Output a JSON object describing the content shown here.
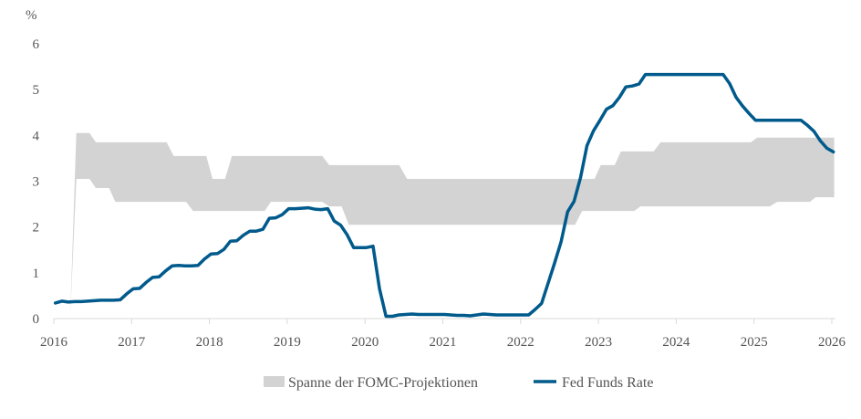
{
  "chart_data": {
    "type": "line",
    "title": "",
    "ylabel": "%",
    "xlabel": "",
    "ylim": [
      0,
      6
    ],
    "xlim": [
      2016,
      2026
    ],
    "grid": false,
    "legend_position": "bottom",
    "y_ticks": [
      "0",
      "1",
      "2",
      "3",
      "4",
      "5",
      "6"
    ],
    "x_ticks": [
      "2016",
      "2017",
      "2018",
      "2019",
      "2020",
      "2021",
      "2022",
      "2023",
      "2024",
      "2025",
      "2026"
    ],
    "colors": {
      "fed_funds": "#005a8c",
      "projection_range": "#d3d3d3",
      "axis": "#d9d9d9",
      "text": "#555555"
    },
    "legend": [
      {
        "label": "Spanne der FOMC-Projektionen",
        "kind": "area"
      },
      {
        "label": "Fed Funds Rate",
        "kind": "line"
      }
    ],
    "series": [
      {
        "name": "Fed Funds Rate",
        "start": "2016-01",
        "frequency": "monthly",
        "values": [
          0.34,
          0.38,
          0.36,
          0.37,
          0.37,
          0.38,
          0.39,
          0.4,
          0.4,
          0.4,
          0.41,
          0.54,
          0.65,
          0.66,
          0.79,
          0.9,
          0.91,
          1.04,
          1.15,
          1.16,
          1.15,
          1.15,
          1.16,
          1.3,
          1.41,
          1.42,
          1.51,
          1.69,
          1.7,
          1.82,
          1.91,
          1.91,
          1.95,
          2.19,
          2.2,
          2.27,
          2.4,
          2.4,
          2.41,
          2.42,
          2.39,
          2.38,
          2.4,
          2.13,
          2.04,
          1.83,
          1.55,
          1.55,
          1.55,
          1.58,
          0.65,
          0.05,
          0.05,
          0.08,
          0.09,
          0.1,
          0.09,
          0.09,
          0.09,
          0.09,
          0.09,
          0.08,
          0.07,
          0.07,
          0.06,
          0.08,
          0.1,
          0.09,
          0.08,
          0.08,
          0.08,
          0.08,
          0.08,
          0.08,
          0.2,
          0.33,
          0.77,
          1.21,
          1.68,
          2.33,
          2.56,
          3.08,
          3.78,
          4.1,
          4.33,
          4.57,
          4.65,
          4.83,
          5.06,
          5.08,
          5.12,
          5.33,
          5.33,
          5.33,
          5.33,
          5.33,
          5.33,
          5.33,
          5.33,
          5.33,
          5.33,
          5.33,
          5.33,
          5.33,
          5.13,
          4.83,
          4.64,
          4.48,
          4.33,
          4.33,
          4.33,
          4.33,
          4.33,
          4.33,
          4.33,
          4.33,
          4.22,
          4.09,
          3.88,
          3.72,
          3.64
        ]
      },
      {
        "name": "Spanne der FOMC-Projektionen",
        "points": [
          [
            2016.21,
            0.0,
            0.0
          ],
          [
            2016.29,
            3.05,
            4.05
          ],
          [
            2016.46,
            3.05,
            4.05
          ],
          [
            2016.54,
            2.85,
            3.85
          ],
          [
            2016.71,
            2.85,
            3.85
          ],
          [
            2016.79,
            2.55,
            3.85
          ],
          [
            2017.45,
            2.55,
            3.85
          ],
          [
            2017.54,
            2.55,
            3.55
          ],
          [
            2017.7,
            2.55,
            3.55
          ],
          [
            2017.79,
            2.35,
            3.55
          ],
          [
            2017.96,
            2.35,
            3.55
          ],
          [
            2018.04,
            2.35,
            3.05
          ],
          [
            2018.2,
            2.35,
            3.05
          ],
          [
            2018.29,
            2.35,
            3.55
          ],
          [
            2018.71,
            2.35,
            3.55
          ],
          [
            2018.79,
            2.55,
            3.55
          ],
          [
            2019.45,
            2.55,
            3.55
          ],
          [
            2019.54,
            2.45,
            3.35
          ],
          [
            2019.7,
            2.45,
            3.35
          ],
          [
            2019.79,
            2.05,
            3.35
          ],
          [
            2020.44,
            2.05,
            3.35
          ],
          [
            2020.54,
            2.05,
            3.05
          ],
          [
            2022.7,
            2.05,
            3.05
          ],
          [
            2022.79,
            2.35,
            3.05
          ],
          [
            2022.95,
            2.35,
            3.05
          ],
          [
            2023.03,
            2.35,
            3.35
          ],
          [
            2023.21,
            2.35,
            3.35
          ],
          [
            2023.29,
            2.35,
            3.65
          ],
          [
            2023.46,
            2.35,
            3.65
          ],
          [
            2023.54,
            2.45,
            3.65
          ],
          [
            2023.71,
            2.45,
            3.65
          ],
          [
            2023.8,
            2.45,
            3.85
          ],
          [
            2024.96,
            2.45,
            3.85
          ],
          [
            2025.04,
            2.45,
            3.95
          ],
          [
            2025.2,
            2.45,
            3.95
          ],
          [
            2025.3,
            2.55,
            3.95
          ],
          [
            2025.72,
            2.55,
            3.95
          ],
          [
            2025.79,
            2.65,
            3.95
          ],
          [
            2026.03,
            2.65,
            3.95
          ]
        ]
      }
    ]
  }
}
